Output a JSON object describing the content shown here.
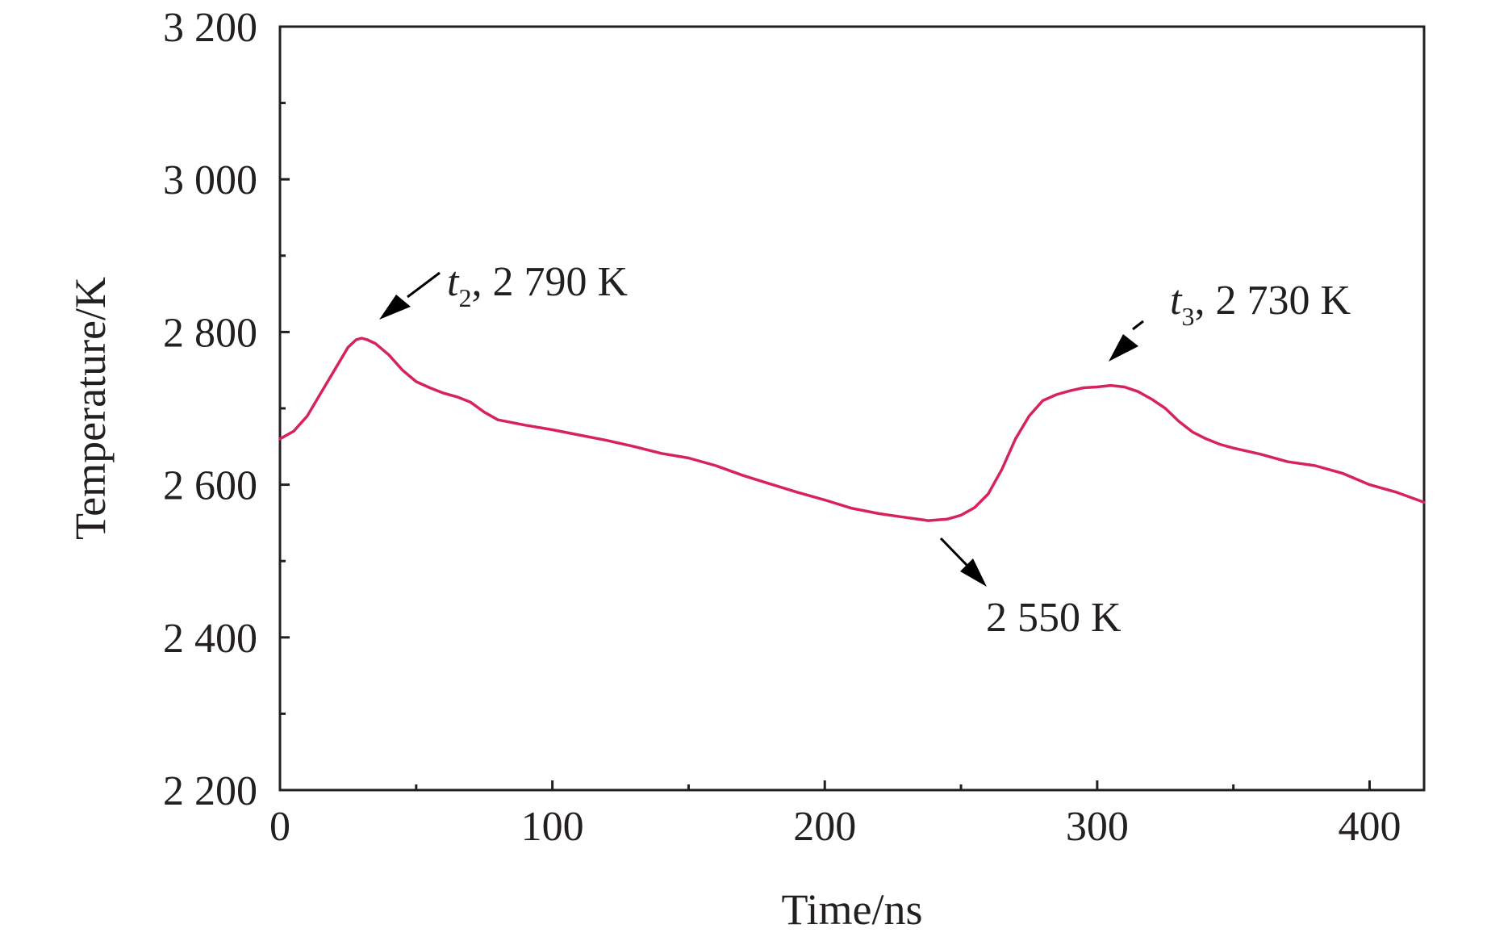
{
  "chart_data": {
    "type": "line",
    "xlabel": "Time/ns",
    "ylabel": "Temperature/K",
    "xlim": [
      0,
      420
    ],
    "ylim": [
      2200,
      3200
    ],
    "xticks": [
      0,
      100,
      200,
      300,
      400
    ],
    "xtick_labels": [
      "0",
      "100",
      "200",
      "300",
      "400"
    ],
    "yticks": [
      2200,
      2400,
      2600,
      2800,
      3000,
      3200
    ],
    "ytick_labels": [
      "2 200",
      "2 400",
      "2 600",
      "2 800",
      "3 000",
      "3 200"
    ],
    "grid": false,
    "series": [
      {
        "color": "#d6245a",
        "x": [
          0,
          5,
          10,
          15,
          20,
          25,
          28,
          30,
          32,
          35,
          40,
          45,
          50,
          55,
          60,
          65,
          70,
          75,
          80,
          90,
          100,
          110,
          120,
          130,
          140,
          150,
          160,
          170,
          180,
          190,
          200,
          210,
          220,
          230,
          238,
          245,
          250,
          255,
          260,
          265,
          270,
          275,
          280,
          285,
          290,
          295,
          300,
          305,
          310,
          315,
          320,
          325,
          330,
          335,
          340,
          345,
          350,
          360,
          370,
          380,
          390,
          400,
          410,
          420
        ],
        "y": [
          2660,
          2670,
          2690,
          2720,
          2750,
          2780,
          2790,
          2792,
          2790,
          2785,
          2770,
          2750,
          2735,
          2727,
          2720,
          2715,
          2708,
          2695,
          2685,
          2678,
          2672,
          2665,
          2658,
          2650,
          2641,
          2635,
          2625,
          2612,
          2601,
          2590,
          2580,
          2569,
          2562,
          2557,
          2553,
          2555,
          2560,
          2570,
          2588,
          2620,
          2660,
          2690,
          2710,
          2718,
          2723,
          2727,
          2728,
          2730,
          2728,
          2722,
          2712,
          2700,
          2683,
          2669,
          2660,
          2653,
          2648,
          2640,
          2630,
          2625,
          2615,
          2600,
          2590,
          2577
        ]
      }
    ],
    "annotations": [
      {
        "italic": "t",
        "sub": "2",
        "text": ", 2 790 K",
        "x": 32,
        "y": 2792
      },
      {
        "italic": "t",
        "sub": "3",
        "text": ", 2 730 K",
        "x": 305,
        "y": 2730
      },
      {
        "italic": "",
        "sub": "",
        "text": "2 550 K",
        "x": 243,
        "y": 2553
      }
    ]
  }
}
